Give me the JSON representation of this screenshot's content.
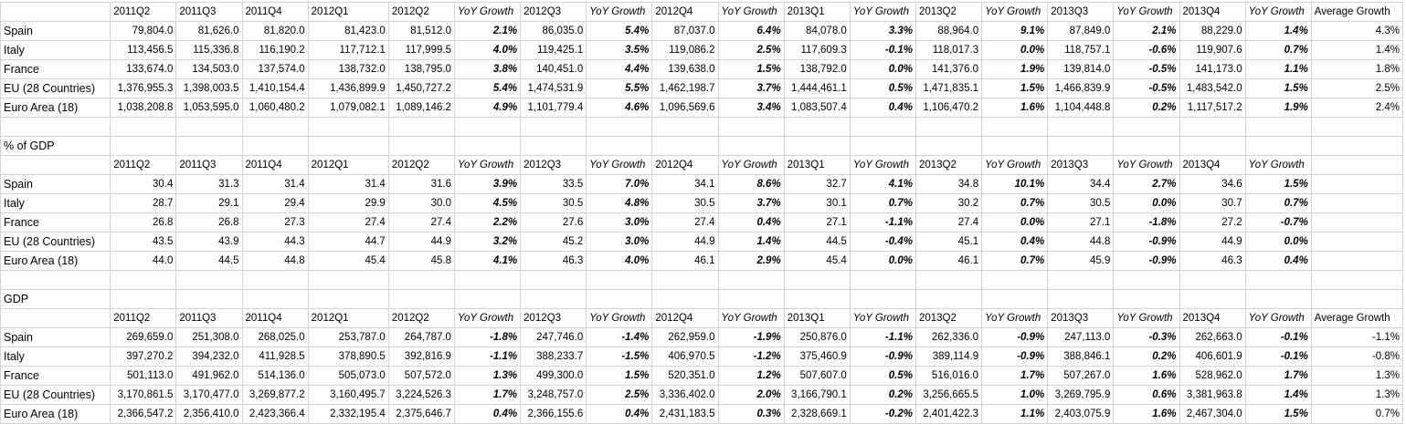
{
  "headers": [
    "",
    "2011Q2",
    "2011Q3",
    "2011Q4",
    "2012Q1",
    "2012Q2",
    "YoY Growth",
    "2012Q3",
    "YoY Growth",
    "2012Q4",
    "YoY Growth",
    "2013Q1",
    "YoY Growth",
    "2013Q2",
    "YoY Growth",
    "2013Q3",
    "YoY Growth",
    "2013Q4",
    "YoY Growth",
    "Average Growth"
  ],
  "sections": [
    {
      "title": "",
      "average_header": "Average Growth",
      "rows": [
        {
          "label": "Spain",
          "cells": [
            "79,804.0",
            "81,626.0",
            "81,820.0",
            "81,423.0",
            "81,512.0",
            "2.1%",
            "86,035.0",
            "5.4%",
            "87,037.0",
            "6.4%",
            "84,078.0",
            "3.3%",
            "88,964.0",
            "9.1%",
            "87,849.0",
            "2.1%",
            "88,229.0",
            "1.4%",
            "4.3%"
          ]
        },
        {
          "label": "Italy",
          "cells": [
            "113,456.5",
            "115,336.8",
            "116,190.2",
            "117,712.1",
            "117,999.5",
            "4.0%",
            "119,425.1",
            "3.5%",
            "119,086.2",
            "2.5%",
            "117,609.3",
            "-0.1%",
            "118,017.3",
            "0.0%",
            "118,757.1",
            "-0.6%",
            "119,907.6",
            "0.7%",
            "1.4%"
          ]
        },
        {
          "label": "France",
          "cells": [
            "133,674.0",
            "134,503.0",
            "137,574.0",
            "138,732.0",
            "138,795.0",
            "3.8%",
            "140,451.0",
            "4.4%",
            "139,638.0",
            "1.5%",
            "138,792.0",
            "0.0%",
            "141,376.0",
            "1.9%",
            "139,814.0",
            "-0.5%",
            "141,173.0",
            "1.1%",
            "1.8%"
          ]
        },
        {
          "label": "EU (28 Countries)",
          "cells": [
            "1,376,955.3",
            "1,398,003.5",
            "1,410,154.4",
            "1,436,899.9",
            "1,450,727.2",
            "5.4%",
            "1,474,531.9",
            "5.5%",
            "1,462,198.7",
            "3.7%",
            "1,444,461.1",
            "0.5%",
            "1,471,835.1",
            "1.5%",
            "1,466,839.9",
            "-0.5%",
            "1,483,542.0",
            "1.5%",
            "2.5%"
          ]
        },
        {
          "label": "Euro Area (18)",
          "cells": [
            "1,038,208.8",
            "1,053,595.0",
            "1,060,480.2",
            "1,079,082.1",
            "1,089,146.2",
            "4.9%",
            "1,101,779.4",
            "4.6%",
            "1,096,569.6",
            "3.4%",
            "1,083,507.4",
            "0.4%",
            "1,106,470.2",
            "1.6%",
            "1,104,448.8",
            "0.2%",
            "1,117,517.2",
            "1.9%",
            "2.4%"
          ]
        }
      ]
    },
    {
      "title": "% of GDP",
      "average_header": "",
      "rows": [
        {
          "label": "Spain",
          "cells": [
            "30.4",
            "31.3",
            "31.4",
            "31.4",
            "31.6",
            "3.9%",
            "33.5",
            "7.0%",
            "34.1",
            "8.6%",
            "32.7",
            "4.1%",
            "34.8",
            "10.1%",
            "34.4",
            "2.7%",
            "34.6",
            "1.5%",
            ""
          ]
        },
        {
          "label": "Italy",
          "cells": [
            "28.7",
            "29.1",
            "29.4",
            "29.9",
            "30.0",
            "4.5%",
            "30.5",
            "4.8%",
            "30.5",
            "3.7%",
            "30.1",
            "0.7%",
            "30.2",
            "0.7%",
            "30.5",
            "0.0%",
            "30.7",
            "0.7%",
            ""
          ]
        },
        {
          "label": "France",
          "cells": [
            "26.8",
            "26.8",
            "27.3",
            "27.4",
            "27.4",
            "2.2%",
            "27.6",
            "3.0%",
            "27.4",
            "0.4%",
            "27.1",
            "-1.1%",
            "27.4",
            "0.0%",
            "27.1",
            "-1.8%",
            "27.2",
            "-0.7%",
            ""
          ]
        },
        {
          "label": "EU (28 Countries)",
          "cells": [
            "43.5",
            "43.9",
            "44.3",
            "44.7",
            "44.9",
            "3.2%",
            "45.2",
            "3.0%",
            "44.9",
            "1.4%",
            "44.5",
            "-0.4%",
            "45.1",
            "0.4%",
            "44.8",
            "-0.9%",
            "44.9",
            "0.0%",
            ""
          ]
        },
        {
          "label": "Euro Area (18)",
          "cells": [
            "44.0",
            "44.5",
            "44.8",
            "45.4",
            "45.8",
            "4.1%",
            "46.3",
            "4.0%",
            "46.1",
            "2.9%",
            "45.4",
            "0.0%",
            "46.1",
            "0.7%",
            "45.9",
            "-0.9%",
            "46.3",
            "0.4%",
            ""
          ]
        }
      ]
    },
    {
      "title": "GDP",
      "average_header": "Average Growth",
      "rows": [
        {
          "label": "Spain",
          "cells": [
            "269,659.0",
            "251,308.0",
            "268,025.0",
            "253,787.0",
            "264,787.0",
            "-1.8%",
            "247,746.0",
            "-1.4%",
            "262,959.0",
            "-1.9%",
            "250,876.0",
            "-1.1%",
            "262,336.0",
            "-0.9%",
            "247,113.0",
            "-0.3%",
            "262,663.0",
            "-0.1%",
            "-1.1%"
          ]
        },
        {
          "label": "Italy",
          "cells": [
            "397,270.2",
            "394,232.0",
            "411,928.5",
            "378,890.5",
            "392,816.9",
            "-1.1%",
            "388,233.7",
            "-1.5%",
            "406,970.5",
            "-1.2%",
            "375,460.9",
            "-0.9%",
            "389,114.9",
            "-0.9%",
            "388,846.1",
            "0.2%",
            "406,601.9",
            "-0.1%",
            "-0.8%"
          ]
        },
        {
          "label": "France",
          "cells": [
            "501,113.0",
            "491,962.0",
            "514,136.0",
            "505,073.0",
            "507,572.0",
            "1.3%",
            "499,300.0",
            "1.5%",
            "520,351.0",
            "1.2%",
            "507,607.0",
            "0.5%",
            "516,016.0",
            "1.7%",
            "507,267.0",
            "1.6%",
            "528,962.0",
            "1.7%",
            "1.3%"
          ]
        },
        {
          "label": "EU (28 Countries)",
          "cells": [
            "3,170,861.5",
            "3,170,477.0",
            "3,269,877.2",
            "3,160,495.7",
            "3,224,526.3",
            "1.7%",
            "3,248,757.0",
            "2.5%",
            "3,336,402.0",
            "2.0%",
            "3,166,790.1",
            "0.2%",
            "3,256,665.5",
            "1.0%",
            "3,269,795.9",
            "0.6%",
            "3,381,963.8",
            "1.4%",
            "1.3%"
          ]
        },
        {
          "label": "Euro Area (18)",
          "cells": [
            "2,366,547.2",
            "2,356,410.0",
            "2,423,366.4",
            "2,332,195.4",
            "2,375,646.7",
            "0.4%",
            "2,366,155.6",
            "0.4%",
            "2,431,183.5",
            "0.3%",
            "2,328,669.1",
            "-0.2%",
            "2,401,422.3",
            "1.1%",
            "2,403,075.9",
            "1.6%",
            "2,467,304.0",
            "1.5%",
            "0.7%"
          ]
        }
      ]
    }
  ]
}
